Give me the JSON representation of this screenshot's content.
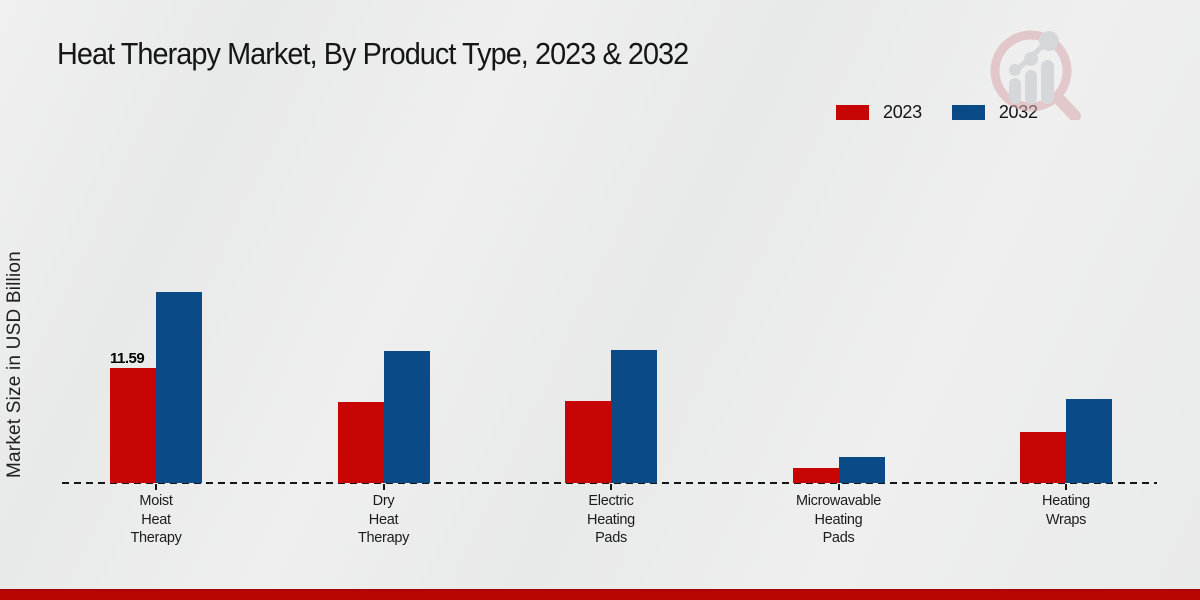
{
  "title": "Heat Therapy Market, By Product Type, 2023 & 2032",
  "y_axis_label": "Market Size in USD Billion",
  "legend": {
    "position": "top-right",
    "items": [
      {
        "label": "2023",
        "color": "#c60504"
      },
      {
        "label": "2032",
        "color": "#0a4b87"
      }
    ]
  },
  "colors": {
    "series_2023": "#c60504",
    "series_2032": "#0a4b87",
    "background": "#eaebeb",
    "bottom_bar": "#b90505",
    "axis": "#161616"
  },
  "icons": {
    "watermark": "magnifier-bar-chart-logo"
  },
  "chart_data": {
    "type": "bar",
    "title": "Heat Therapy Market, By Product Type, 2023 & 2032",
    "xlabel": "",
    "ylabel": "Market Size in USD Billion",
    "ylim": [
      0,
      20
    ],
    "grid": false,
    "legend_position": "top-right",
    "baseline_style": "dashed",
    "categories": [
      "Moist Heat Therapy",
      "Dry Heat Therapy",
      "Electric Heating Pads",
      "Microwavable Heating Pads",
      "Heating Wraps"
    ],
    "category_lines": [
      [
        "Moist",
        "Heat",
        "Therapy"
      ],
      [
        "Dry",
        "Heat",
        "Therapy"
      ],
      [
        "Electric",
        "Heating",
        "Pads"
      ],
      [
        "Microwavable",
        "Heating",
        "Pads"
      ],
      [
        "Heating",
        "Wraps"
      ]
    ],
    "series": [
      {
        "name": "2023",
        "color": "#c60504",
        "values": [
          11.59,
          8.2,
          8.3,
          1.55,
          5.2
        ]
      },
      {
        "name": "2032",
        "color": "#0a4b87",
        "values": [
          19.35,
          13.35,
          13.5,
          2.65,
          8.55
        ]
      }
    ],
    "data_labels": [
      {
        "series": "2023",
        "category": "Moist Heat Therapy",
        "category_index": 0,
        "text": "11.59"
      }
    ]
  }
}
